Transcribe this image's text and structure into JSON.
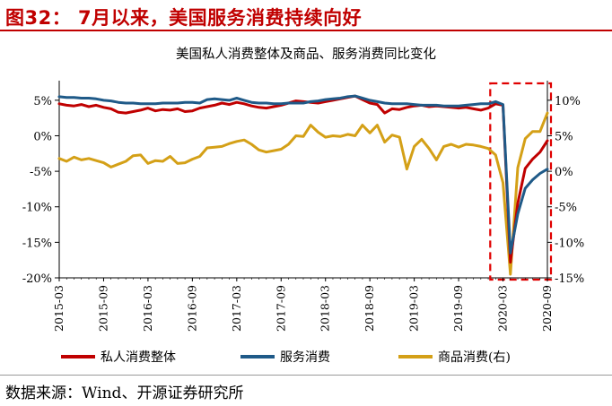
{
  "figure": {
    "title": "图32：  7月以来，美国服务消费持续向好",
    "source": "数据来源：Wind、开源证券研究所"
  },
  "colors": {
    "title": "#c00000",
    "private_consumption": "#c00000",
    "services": "#1f5a88",
    "goods": "#d4a017",
    "highlight": "#e00000"
  },
  "chart_data": {
    "type": "line",
    "title": "美国私人消费整体及商品、服务消费同比变化",
    "x": [
      "2015-03",
      "2015-04",
      "2015-05",
      "2015-06",
      "2015-07",
      "2015-08",
      "2015-09",
      "2015-10",
      "2015-11",
      "2015-12",
      "2016-01",
      "2016-02",
      "2016-03",
      "2016-04",
      "2016-05",
      "2016-06",
      "2016-07",
      "2016-08",
      "2016-09",
      "2016-10",
      "2016-11",
      "2016-12",
      "2017-01",
      "2017-02",
      "2017-03",
      "2017-04",
      "2017-05",
      "2017-06",
      "2017-07",
      "2017-08",
      "2017-09",
      "2017-10",
      "2017-11",
      "2017-12",
      "2018-01",
      "2018-02",
      "2018-03",
      "2018-04",
      "2018-05",
      "2018-06",
      "2018-07",
      "2018-08",
      "2018-09",
      "2018-10",
      "2018-11",
      "2018-12",
      "2019-01",
      "2019-02",
      "2019-03",
      "2019-04",
      "2019-05",
      "2019-06",
      "2019-07",
      "2019-08",
      "2019-09",
      "2019-10",
      "2019-11",
      "2019-12",
      "2020-01",
      "2020-02",
      "2020-03",
      "2020-04",
      "2020-05",
      "2020-06",
      "2020-07",
      "2020-08",
      "2020-09"
    ],
    "x_tick_labels": [
      "2015-03",
      "2015-09",
      "2016-03",
      "2016-09",
      "2017-03",
      "2017-09",
      "2018-03",
      "2018-09",
      "2019-03",
      "2019-09",
      "2020-03",
      "2020-09"
    ],
    "series": [
      {
        "name": "私人消费整体",
        "axis": "left",
        "values": [
          4.5,
          4.3,
          4.2,
          4.4,
          4.1,
          4.3,
          4.0,
          3.8,
          3.3,
          3.2,
          3.4,
          3.6,
          3.9,
          3.5,
          3.7,
          3.6,
          3.8,
          3.4,
          3.5,
          3.9,
          4.1,
          4.3,
          4.6,
          4.4,
          4.7,
          4.5,
          4.2,
          4.0,
          3.9,
          4.1,
          4.3,
          4.6,
          4.9,
          4.8,
          4.7,
          4.6,
          4.8,
          5.0,
          5.2,
          5.4,
          5.6,
          5.1,
          4.6,
          4.4,
          3.2,
          3.8,
          3.7,
          4.0,
          4.2,
          4.3,
          4.1,
          4.2,
          4.1,
          4.0,
          3.9,
          4.0,
          3.8,
          3.6,
          3.9,
          4.5,
          4.3,
          -17.8,
          -9.5,
          -4.6,
          -3.3,
          -2.3,
          -0.7
        ]
      },
      {
        "name": "服务消费",
        "axis": "left",
        "values": [
          5.5,
          5.4,
          5.4,
          5.3,
          5.3,
          5.2,
          5.0,
          4.9,
          4.7,
          4.6,
          4.6,
          4.5,
          4.5,
          4.5,
          4.6,
          4.6,
          4.6,
          4.7,
          4.7,
          4.6,
          5.1,
          5.2,
          5.1,
          5.0,
          5.3,
          5.0,
          4.7,
          4.6,
          4.6,
          4.5,
          4.5,
          4.6,
          4.6,
          4.6,
          4.8,
          4.9,
          5.1,
          5.2,
          5.3,
          5.5,
          5.6,
          5.3,
          5.0,
          4.8,
          4.6,
          4.5,
          4.5,
          4.5,
          4.4,
          4.3,
          4.3,
          4.3,
          4.2,
          4.2,
          4.2,
          4.3,
          4.4,
          4.5,
          4.5,
          4.8,
          4.4,
          -16.5,
          -11.0,
          -7.4,
          -6.2,
          -5.3,
          -4.7
        ]
      },
      {
        "name": "商品消费(右)",
        "axis": "right",
        "values": [
          1.8,
          1.4,
          2.0,
          1.6,
          1.8,
          1.5,
          1.2,
          0.6,
          1.0,
          1.4,
          2.2,
          2.3,
          1.1,
          1.5,
          1.4,
          2.1,
          1.1,
          1.2,
          1.7,
          2.1,
          3.3,
          3.4,
          3.5,
          3.9,
          4.2,
          4.4,
          3.8,
          3.0,
          2.7,
          2.9,
          3.1,
          3.8,
          5.0,
          4.9,
          6.5,
          5.5,
          4.8,
          5.0,
          4.9,
          5.2,
          5.0,
          6.5,
          5.4,
          6.5,
          4.1,
          5.1,
          4.8,
          0.3,
          3.5,
          4.5,
          3.2,
          1.6,
          3.5,
          3.8,
          3.4,
          3.8,
          3.7,
          3.5,
          3.2,
          2.3,
          -1.6,
          -14.5,
          0.5,
          4.6,
          5.6,
          5.6,
          8.2
        ]
      }
    ],
    "legend": [
      "私人消费整体",
      "服务消费",
      "商品消费(右)"
    ],
    "legend_position": "bottom",
    "ylim_left": [
      -20,
      7
    ],
    "ylim_right": [
      -15,
      12
    ],
    "yticks_left": [
      "5%",
      "0%",
      "-5%",
      "-10%",
      "-15%",
      "-20%"
    ],
    "yticks_right": [
      "10%",
      "5%",
      "0%",
      "-5%",
      "-10%",
      "-15%"
    ],
    "highlight": {
      "from": "2020-02",
      "to": "2020-09",
      "style": "dashed-box"
    }
  }
}
